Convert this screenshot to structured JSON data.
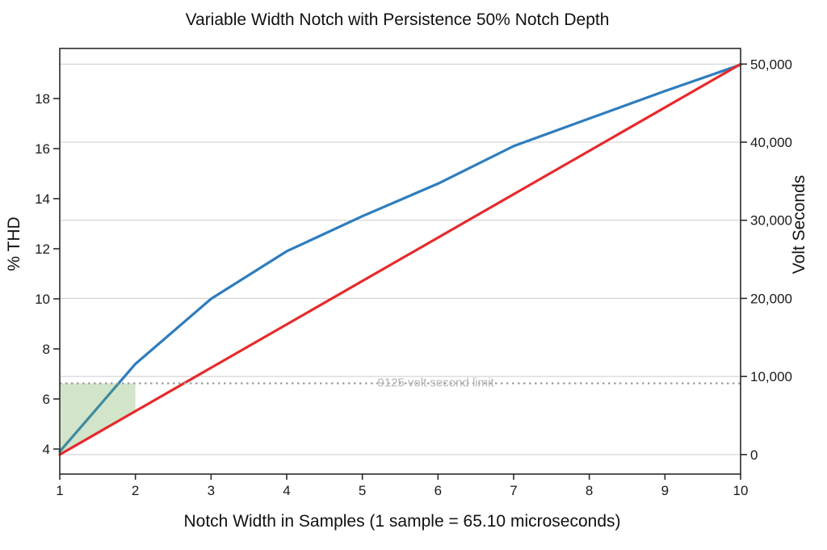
{
  "chart_data": {
    "type": "line",
    "title": "Variable Width Notch with Persistence 50% Notch Depth",
    "xlabel": "Notch Width in Samples (1 sample = 65.10 microseconds)",
    "ylabel_left": "% THD",
    "ylabel_right": "Volt Seconds",
    "xlim": [
      1,
      10
    ],
    "ylim_left": [
      3,
      20
    ],
    "ylim_right": [
      -2500,
      52000
    ],
    "grid": {
      "horizontal": "right_ticks",
      "vertical": false,
      "color": "#cccccc"
    },
    "x_ticks": {
      "values": [
        1,
        2,
        3,
        4,
        5,
        6,
        7,
        8,
        9,
        10
      ],
      "labels": [
        "1",
        "2",
        "3",
        "4",
        "5",
        "6",
        "7",
        "8",
        "9",
        "10"
      ]
    },
    "left_ticks": {
      "values": [
        4,
        6,
        8,
        10,
        12,
        14,
        16,
        18
      ],
      "labels": [
        "4",
        "6",
        "8",
        "10",
        "12",
        "14",
        "16",
        "18"
      ]
    },
    "right_ticks": {
      "values": [
        0,
        10000,
        20000,
        30000,
        40000,
        50000
      ],
      "labels": [
        "0",
        "10,000",
        "20,000",
        "30,000",
        "40,000",
        "50,000"
      ]
    },
    "series": [
      {
        "name": "% THD",
        "axis": "left",
        "color": "#2e7dbe",
        "width": 3.2,
        "x": [
          1,
          2,
          3,
          4,
          5,
          6,
          7,
          8,
          9,
          10
        ],
        "y": [
          3.9,
          7.4,
          10.0,
          11.9,
          13.3,
          14.6,
          16.1,
          17.2,
          18.3,
          19.35
        ]
      },
      {
        "name": "Volt Seconds",
        "axis": "right",
        "color": "#e62a2c",
        "width": 3.2,
        "x": [
          1,
          10
        ],
        "y": [
          0,
          50000
        ]
      }
    ],
    "limit_line": {
      "axis": "right",
      "value": 9125,
      "style": "dotted",
      "color": "#9e9e9e",
      "width": 2.2,
      "label": "9125 volt second limit",
      "label_color": "#b4b4b4",
      "label_anchor_x": 5.97
    },
    "shaded_region": {
      "axis": "right",
      "color": "#6aa84f",
      "opacity": 0.3,
      "polygon": [
        [
          1,
          9125
        ],
        [
          2,
          9125
        ],
        [
          2,
          5556
        ],
        [
          1,
          0
        ]
      ]
    },
    "frame_color": "#2b2b2b",
    "background": "#ffffff"
  }
}
